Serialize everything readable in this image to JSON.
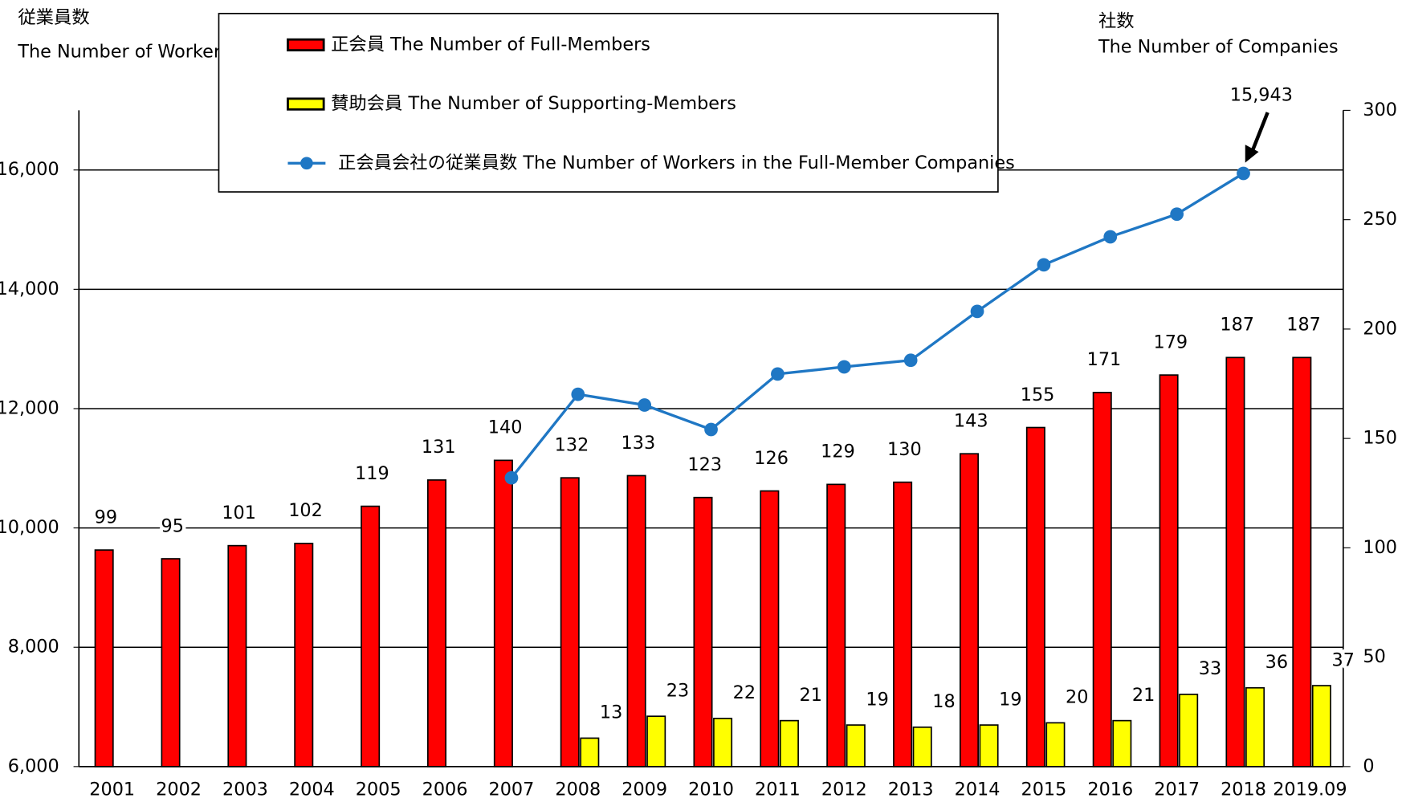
{
  "chart_data": {
    "type": "bar_line",
    "ylabel": [
      "従業員数",
      "The Number of Workers"
    ],
    "y2label": [
      "社数",
      "The Number of Companies"
    ],
    "categories": [
      "2001",
      "2002",
      "2003",
      "2004",
      "2005",
      "2006",
      "2007",
      "2008",
      "2009",
      "2010",
      "2011",
      "2012",
      "2013",
      "2014",
      "2015",
      "2016",
      "2017",
      "2018",
      "2019.09"
    ],
    "series": [
      {
        "name": "正会員 The Number of Full-Members",
        "type": "bar",
        "axis": "y2",
        "color": "#ff0000",
        "values": [
          99,
          95,
          101,
          102,
          119,
          131,
          140,
          132,
          133,
          123,
          126,
          129,
          130,
          143,
          155,
          171,
          179,
          187,
          187
        ]
      },
      {
        "name": "賛助会員 The Number of Supporting-Members",
        "type": "bar",
        "axis": "y2",
        "color": "#ffff00",
        "values": [
          null,
          null,
          null,
          null,
          null,
          null,
          null,
          13,
          23,
          22,
          21,
          19,
          18,
          19,
          20,
          21,
          33,
          36,
          37
        ]
      },
      {
        "name": "正会員会社の従業員数 The Number of Workers in the Full-Member Companies",
        "type": "line",
        "axis": "y",
        "color": "#1f77c4",
        "values": [
          null,
          null,
          null,
          null,
          null,
          null,
          10840,
          12240,
          12060,
          11650,
          12580,
          12700,
          12810,
          13630,
          14410,
          14880,
          15260,
          15943,
          null
        ],
        "value_labels": [
          null,
          null,
          null,
          null,
          null,
          null,
          null,
          null,
          null,
          null,
          null,
          null,
          null,
          null,
          null,
          null,
          null,
          "15,943",
          null
        ]
      }
    ],
    "ylim": [
      6000,
      17000
    ],
    "yticks": [
      {
        "value": 6000,
        "label": "6,000"
      },
      {
        "value": 8000,
        "label": "8,000"
      },
      {
        "value": 10000,
        "label": "10,000"
      },
      {
        "value": 12000,
        "label": "12,000"
      },
      {
        "value": 14000,
        "label": "14,000"
      },
      {
        "value": 16000,
        "label": "16,000"
      }
    ],
    "y2lim": [
      0,
      300
    ],
    "y2ticks": [
      0,
      50,
      100,
      150,
      200,
      250,
      300
    ],
    "grid": true,
    "legend": "top"
  }
}
